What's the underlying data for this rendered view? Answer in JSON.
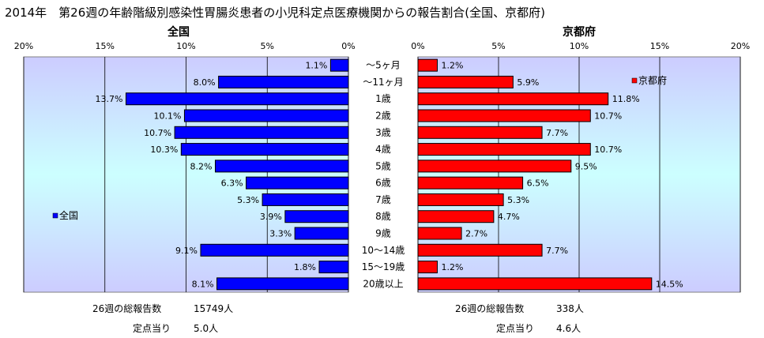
{
  "title": "2014年　第26週の年齢階級別感染性胃腸炎患者の小児科定点医療機関からの報告割合(全国、京都府)",
  "chart_data": [
    {
      "type": "bar",
      "orientation": "horizontal",
      "direction": "right-to-left",
      "title": "全国",
      "categories": [
        "～5ヶ月",
        "～11ヶ月",
        "1歳",
        "2歳",
        "3歳",
        "4歳",
        "5歳",
        "6歳",
        "7歳",
        "8歳",
        "9歳",
        "10～14歳",
        "15～19歳",
        "20歳以上"
      ],
      "series": [
        {
          "name": "全国",
          "values": [
            1.1,
            8.0,
            13.7,
            10.1,
            10.7,
            10.3,
            8.2,
            6.3,
            5.3,
            3.9,
            3.3,
            9.1,
            1.8,
            8.1
          ],
          "color": "#0000ff"
        }
      ],
      "value_labels": [
        "1.1%",
        "8.0%",
        "13.7%",
        "10.1%",
        "10.7%",
        "10.3%",
        "8.2%",
        "6.3%",
        "5.3%",
        "3.9%",
        "3.3%",
        "9.1%",
        "1.8%",
        "8.1%"
      ],
      "axis_ticks": [
        "20%",
        "15%",
        "10%",
        "5%",
        "0%"
      ],
      "xlim": [
        0,
        20
      ],
      "grid": true,
      "legend": "left"
    },
    {
      "type": "bar",
      "orientation": "horizontal",
      "direction": "left-to-right",
      "title": "京都府",
      "categories": [
        "～5ヶ月",
        "～11ヶ月",
        "1歳",
        "2歳",
        "3歳",
        "4歳",
        "5歳",
        "6歳",
        "7歳",
        "8歳",
        "9歳",
        "10～14歳",
        "15～19歳",
        "20歳以上"
      ],
      "series": [
        {
          "name": "京都府",
          "values": [
            1.2,
            5.9,
            11.8,
            10.7,
            7.7,
            10.7,
            9.5,
            6.5,
            5.3,
            4.7,
            2.7,
            7.7,
            1.2,
            14.5
          ],
          "color": "#ff0000"
        }
      ],
      "value_labels": [
        "1.2%",
        "5.9%",
        "11.8%",
        "10.7%",
        "7.7%",
        "10.7%",
        "9.5%",
        "6.5%",
        "5.3%",
        "4.7%",
        "2.7%",
        "7.7%",
        "1.2%",
        "14.5%"
      ],
      "axis_ticks": [
        "0%",
        "5%",
        "10%",
        "15%",
        "20%"
      ],
      "xlim": [
        0,
        20
      ],
      "grid": true,
      "legend": "top-right"
    }
  ],
  "stats": {
    "national": {
      "total_label": "26週の総報告数",
      "total_value": "15749人",
      "per_site_label": "定点当り",
      "per_site_value": "5.0人"
    },
    "kyoto": {
      "total_label": "26週の総報告数",
      "total_value": "338人",
      "per_site_label": "定点当り",
      "per_site_value": "4.6人"
    }
  },
  "colors": {
    "plot_bg_top": "#ccccff",
    "plot_bg_mid": "#ccffff",
    "national_bar": "#0000ff",
    "kyoto_bar": "#ff0000",
    "grid": "#000000"
  }
}
